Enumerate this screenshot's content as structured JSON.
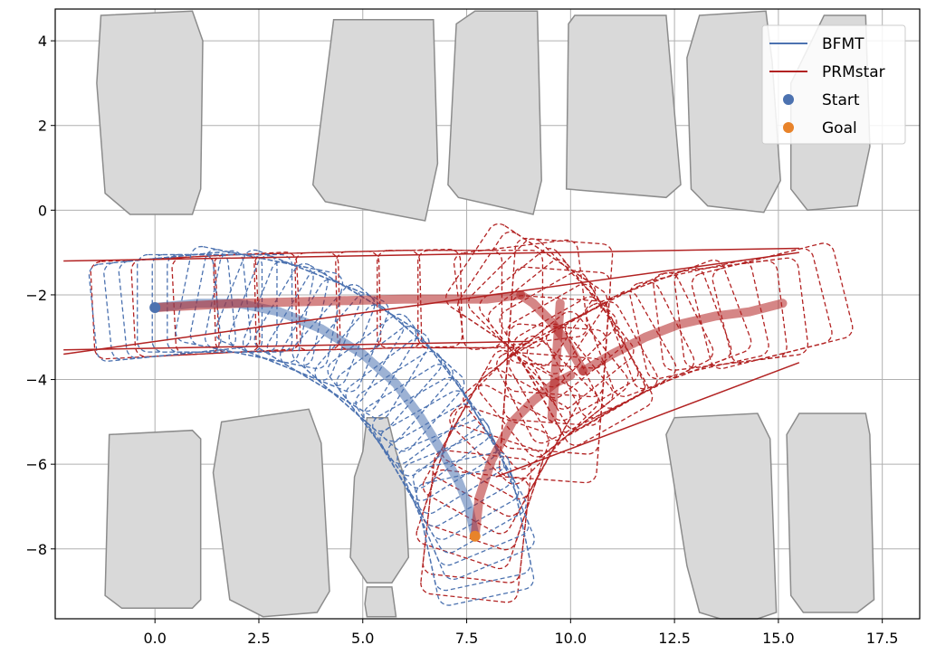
{
  "chart_data": {
    "type": "line",
    "title": "",
    "xlabel": "",
    "ylabel": "",
    "xlim": [
      -2.4,
      18.4
    ],
    "ylim": [
      -9.65,
      4.75
    ],
    "xticks": [
      0.0,
      2.5,
      5.0,
      7.5,
      10.0,
      12.5,
      15.0,
      17.5
    ],
    "xtick_labels": [
      "0.0",
      "2.5",
      "5.0",
      "7.5",
      "10.0",
      "12.5",
      "15.0",
      "17.5"
    ],
    "yticks": [
      4,
      2,
      0,
      -2,
      -4,
      -6,
      -8
    ],
    "ytick_labels": [
      "4",
      "2",
      "0",
      "−2",
      "−4",
      "−6",
      "−8"
    ],
    "grid": true,
    "legend_position": "top-right",
    "legend": [
      {
        "label": "BFMT",
        "marker": "line",
        "color": "#4c72b0"
      },
      {
        "label": "PRMstar",
        "marker": "line",
        "color": "#b22222"
      },
      {
        "label": "Start",
        "marker": "dot",
        "color": "#4c72b0"
      },
      {
        "label": "Goal",
        "marker": "dot",
        "color": "#e8832a"
      }
    ],
    "colors": {
      "bfmt": "#4c72b0",
      "prmstar": "#b22222",
      "start": "#4c72b0",
      "goal": "#e8832a",
      "obstacle_fill": "#d9d9d9",
      "obstacle_edge": "#8c8c8c"
    },
    "start": {
      "x": 0.0,
      "y": -2.3
    },
    "goal": {
      "x": 7.7,
      "y": -7.7
    },
    "obstacles": [
      [
        [
          -1.3,
          4.6
        ],
        [
          0.9,
          4.7
        ],
        [
          1.15,
          4.0
        ],
        [
          1.1,
          0.5
        ],
        [
          0.9,
          -0.1
        ],
        [
          -0.6,
          -0.1
        ],
        [
          -1.2,
          0.4
        ],
        [
          -1.4,
          3.0
        ]
      ],
      [
        [
          4.3,
          4.5
        ],
        [
          6.7,
          4.5
        ],
        [
          6.8,
          1.1
        ],
        [
          6.5,
          -0.25
        ],
        [
          4.1,
          0.2
        ],
        [
          3.8,
          0.6
        ]
      ],
      [
        [
          7.7,
          4.7
        ],
        [
          9.2,
          4.7
        ],
        [
          9.3,
          0.7
        ],
        [
          9.1,
          -0.1
        ],
        [
          7.3,
          0.3
        ],
        [
          7.05,
          0.6
        ],
        [
          7.25,
          4.4
        ]
      ],
      [
        [
          10.1,
          4.6
        ],
        [
          12.3,
          4.6
        ],
        [
          12.65,
          0.6
        ],
        [
          12.3,
          0.3
        ],
        [
          9.9,
          0.5
        ],
        [
          9.95,
          4.4
        ]
      ],
      [
        [
          13.1,
          4.6
        ],
        [
          14.7,
          4.7
        ],
        [
          14.85,
          3.5
        ],
        [
          15.05,
          0.7
        ],
        [
          14.65,
          -0.05
        ],
        [
          13.3,
          0.1
        ],
        [
          12.9,
          0.5
        ],
        [
          12.8,
          3.6
        ]
      ],
      [
        [
          16.1,
          4.6
        ],
        [
          17.1,
          4.6
        ],
        [
          17.2,
          1.5
        ],
        [
          16.9,
          0.1
        ],
        [
          15.7,
          0.0
        ],
        [
          15.3,
          0.5
        ],
        [
          15.3,
          3.0
        ]
      ],
      [
        [
          -1.1,
          -5.3
        ],
        [
          0.9,
          -5.2
        ],
        [
          1.1,
          -5.4
        ],
        [
          1.1,
          -9.2
        ],
        [
          0.9,
          -9.4
        ],
        [
          -0.8,
          -9.4
        ],
        [
          -1.2,
          -9.1
        ]
      ],
      [
        [
          1.6,
          -5.0
        ],
        [
          3.7,
          -4.7
        ],
        [
          4.0,
          -5.5
        ],
        [
          4.2,
          -9.0
        ],
        [
          3.9,
          -9.5
        ],
        [
          2.6,
          -9.6
        ],
        [
          1.8,
          -9.2
        ],
        [
          1.4,
          -6.2
        ]
      ],
      [
        [
          5.1,
          -4.9
        ],
        [
          5.6,
          -4.9
        ],
        [
          5.8,
          -5.7
        ],
        [
          6.0,
          -6.3
        ],
        [
          6.1,
          -8.2
        ],
        [
          5.7,
          -8.8
        ],
        [
          5.1,
          -8.8
        ],
        [
          4.7,
          -8.2
        ],
        [
          4.8,
          -6.3
        ],
        [
          5.0,
          -5.7
        ]
      ],
      [
        [
          5.1,
          -8.9
        ],
        [
          5.7,
          -8.9
        ],
        [
          5.8,
          -9.6
        ],
        [
          5.1,
          -9.6
        ],
        [
          5.05,
          -9.3
        ]
      ],
      [
        [
          12.5,
          -4.9
        ],
        [
          14.5,
          -4.8
        ],
        [
          14.8,
          -5.4
        ],
        [
          14.95,
          -9.5
        ],
        [
          14.5,
          -9.65
        ],
        [
          13.6,
          -9.65
        ],
        [
          13.1,
          -9.5
        ],
        [
          12.8,
          -8.4
        ],
        [
          12.3,
          -5.3
        ]
      ],
      [
        [
          15.5,
          -4.8
        ],
        [
          17.1,
          -4.8
        ],
        [
          17.2,
          -5.3
        ],
        [
          17.3,
          -9.2
        ],
        [
          16.9,
          -9.5
        ],
        [
          15.6,
          -9.5
        ],
        [
          15.3,
          -9.1
        ],
        [
          15.2,
          -5.3
        ]
      ]
    ],
    "series": [
      {
        "name": "BFMT",
        "color": "#4c72b0",
        "x": [
          0.0,
          1.0,
          2.0,
          3.0,
          4.0,
          5.0,
          5.8,
          6.4,
          6.9,
          7.3,
          7.55,
          7.7
        ],
        "y": [
          -2.3,
          -2.2,
          -2.2,
          -2.4,
          -2.8,
          -3.4,
          -4.1,
          -4.9,
          -5.7,
          -6.4,
          -7.0,
          -7.7
        ]
      },
      {
        "name": "PRMstar",
        "color": "#b22222",
        "segments": [
          {
            "x": [
              0.0,
              2.0,
              4.0,
              6.0,
              8.0,
              8.8
            ],
            "y": [
              -2.3,
              -2.2,
              -2.15,
              -2.1,
              -2.1,
              -2.0
            ]
          },
          {
            "x": [
              7.7,
              7.8,
              8.1,
              8.6,
              9.1,
              9.6,
              10.0
            ],
            "y": [
              -7.7,
              -6.8,
              -5.9,
              -5.0,
              -4.5,
              -4.1,
              -3.9
            ]
          },
          {
            "x": [
              8.8,
              9.1,
              9.5,
              9.9,
              10.3
            ],
            "y": [
              -2.0,
              -2.2,
              -2.6,
              -3.1,
              -3.8
            ]
          },
          {
            "x": [
              9.55,
              9.65,
              9.75
            ],
            "y": [
              -4.9,
              -3.6,
              -2.2
            ]
          },
          {
            "x": [
              10.3,
              11.0,
              11.8,
              12.6,
              13.5,
              14.3,
              15.1
            ],
            "y": [
              -3.8,
              -3.4,
              -3.0,
              -2.7,
              -2.5,
              -2.4,
              -2.2
            ]
          }
        ]
      }
    ]
  }
}
